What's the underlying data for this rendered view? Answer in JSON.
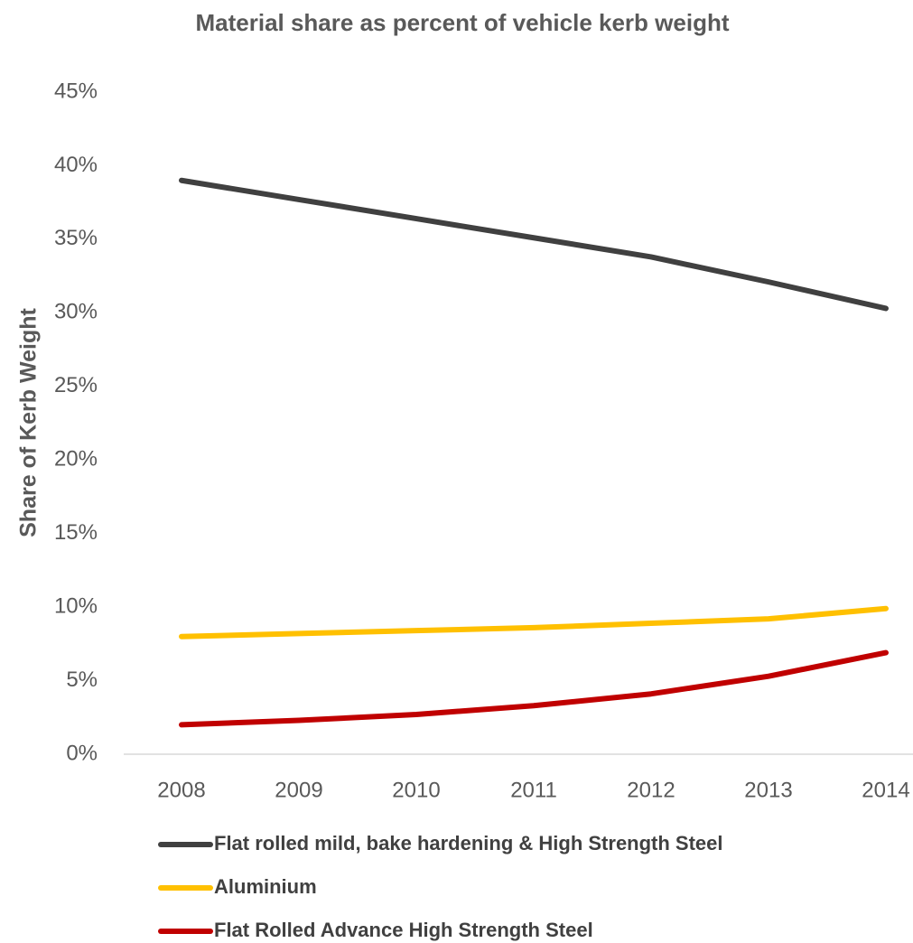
{
  "chart_data": {
    "type": "line",
    "title": "Material share as percent of vehicle kerb weight",
    "y_label": "Share of Kerb Weight",
    "categories": [
      "2008",
      "2009",
      "2010",
      "2011",
      "2012",
      "2013",
      "2014"
    ],
    "series": [
      {
        "name": "Flat rolled mild, bake hardening & High Strength Steel",
        "color": "#404040",
        "values": [
          39.0,
          37.7,
          36.4,
          35.1,
          33.8,
          32.1,
          30.3
        ]
      },
      {
        "name": "Aluminium",
        "color": "#ffc000",
        "values": [
          8.0,
          8.2,
          8.4,
          8.6,
          8.9,
          9.2,
          9.9
        ]
      },
      {
        "name": "Flat Rolled Advance High Strength Steel",
        "color": "#c00000",
        "values": [
          2.0,
          2.3,
          2.7,
          3.3,
          4.1,
          5.3,
          6.9
        ]
      }
    ],
    "ylim": [
      0,
      45
    ],
    "yticks": [
      {
        "value": 0,
        "label": "0%"
      },
      {
        "value": 5,
        "label": "5%"
      },
      {
        "value": 10,
        "label": "10%"
      },
      {
        "value": 15,
        "label": "15%"
      },
      {
        "value": 20,
        "label": "20%"
      },
      {
        "value": 25,
        "label": "25%"
      },
      {
        "value": 30,
        "label": "30%"
      },
      {
        "value": 35,
        "label": "35%"
      },
      {
        "value": 40,
        "label": "40%"
      },
      {
        "value": 45,
        "label": "45%"
      }
    ],
    "grid": false,
    "legend": "bottom"
  }
}
